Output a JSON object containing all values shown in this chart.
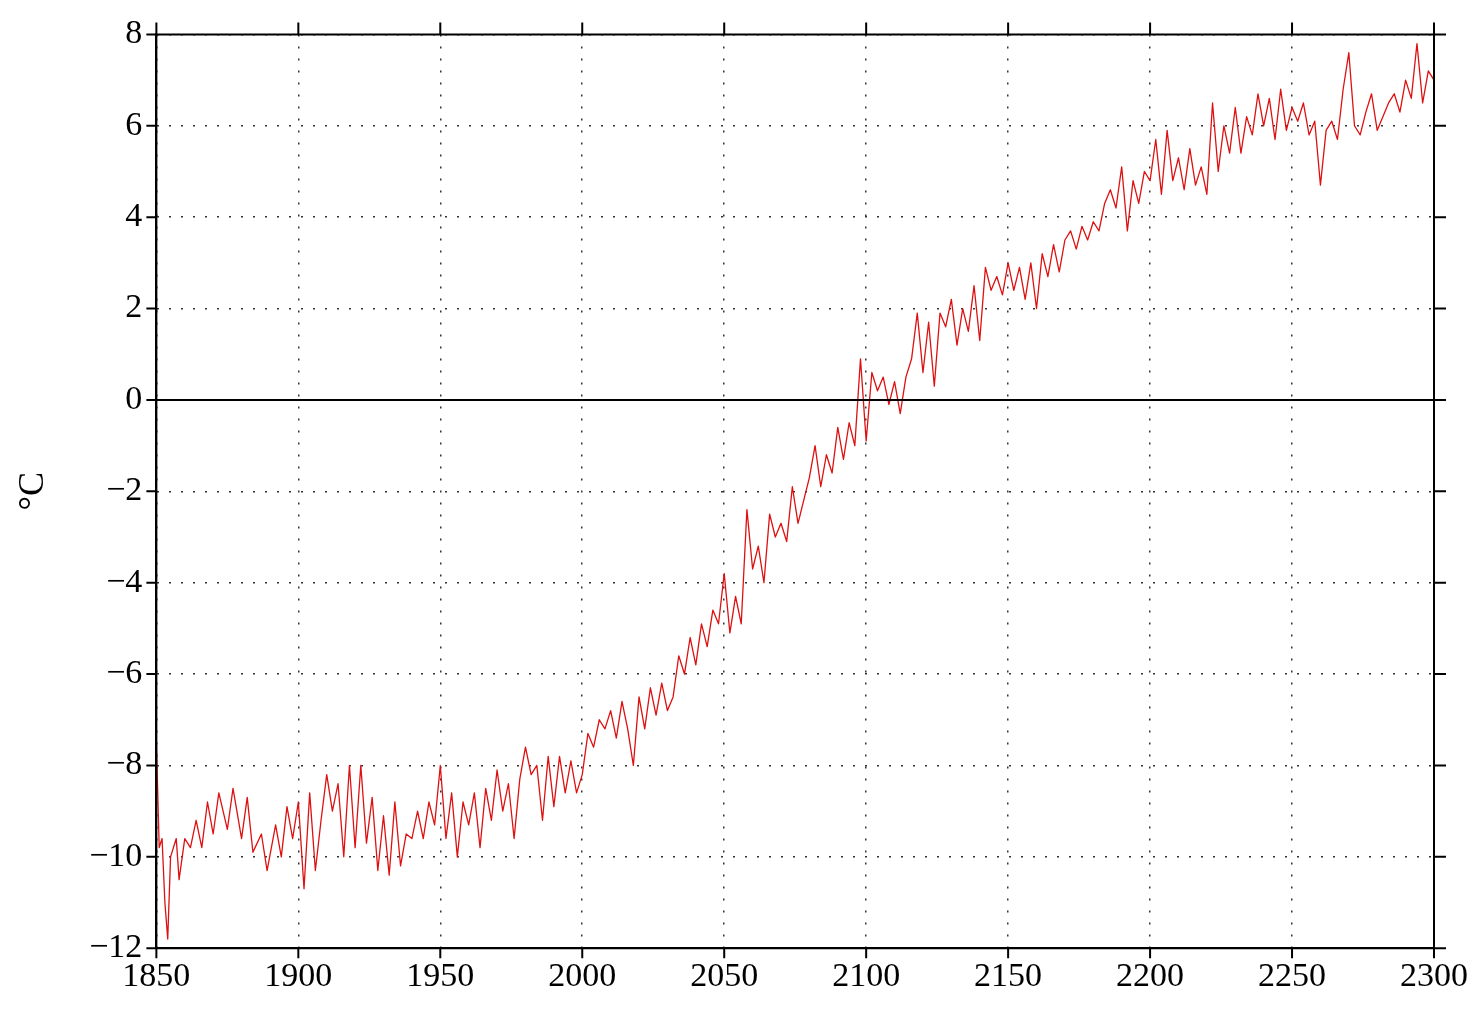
{
  "chart_data": {
    "type": "line",
    "ylabel": "°C",
    "xlim": [
      1850,
      2300
    ],
    "xticks": [
      1850,
      1900,
      1950,
      2000,
      2050,
      2100,
      2150,
      2200,
      2250,
      2300
    ],
    "ylim": [
      -12,
      8
    ],
    "yticks": [
      -12,
      -10,
      -8,
      -6,
      -4,
      -2,
      0,
      2,
      4,
      6,
      8
    ],
    "grid": true,
    "line_style": "solid",
    "marker": "none",
    "legend": false,
    "ref_lines": [
      {
        "axis": "y",
        "value": 0,
        "color": "#000000"
      }
    ],
    "series": [
      {
        "color": "#dd1111",
        "x": [
          1850,
          1851,
          1852,
          1853,
          1854,
          1855,
          1857,
          1858,
          1860,
          1862,
          1864,
          1866,
          1868,
          1870,
          1872,
          1875,
          1877,
          1880,
          1882,
          1884,
          1887,
          1889,
          1892,
          1894,
          1896,
          1898,
          1900,
          1902,
          1904,
          1906,
          1908,
          1910,
          1912,
          1914,
          1916,
          1918,
          1920,
          1922,
          1924,
          1926,
          1928,
          1930,
          1932,
          1934,
          1936,
          1938,
          1940,
          1942,
          1944,
          1946,
          1948,
          1950,
          1952,
          1954,
          1956,
          1958,
          1960,
          1962,
          1964,
          1966,
          1968,
          1970,
          1972,
          1974,
          1976,
          1978,
          1980,
          1982,
          1984,
          1986,
          1988,
          1990,
          1992,
          1994,
          1996,
          1998,
          2000,
          2002,
          2004,
          2006,
          2008,
          2010,
          2012,
          2014,
          2016,
          2018,
          2020,
          2022,
          2024,
          2026,
          2028,
          2030,
          2032,
          2034,
          2036,
          2038,
          2040,
          2042,
          2044,
          2046,
          2048,
          2050,
          2052,
          2054,
          2056,
          2058,
          2060,
          2062,
          2064,
          2066,
          2068,
          2070,
          2072,
          2074,
          2076,
          2078,
          2080,
          2082,
          2084,
          2086,
          2088,
          2090,
          2092,
          2094,
          2096,
          2098,
          2100,
          2102,
          2104,
          2106,
          2108,
          2110,
          2112,
          2114,
          2116,
          2118,
          2120,
          2122,
          2124,
          2126,
          2128,
          2130,
          2132,
          2134,
          2136,
          2138,
          2140,
          2142,
          2144,
          2146,
          2148,
          2150,
          2152,
          2154,
          2156,
          2158,
          2160,
          2162,
          2164,
          2166,
          2168,
          2170,
          2172,
          2174,
          2176,
          2178,
          2180,
          2182,
          2184,
          2186,
          2188,
          2190,
          2192,
          2194,
          2196,
          2198,
          2200,
          2202,
          2204,
          2206,
          2208,
          2210,
          2212,
          2214,
          2216,
          2218,
          2220,
          2222,
          2224,
          2226,
          2228,
          2230,
          2232,
          2234,
          2236,
          2238,
          2240,
          2242,
          2244,
          2246,
          2248,
          2250,
          2252,
          2254,
          2256,
          2258,
          2260,
          2262,
          2264,
          2266,
          2268,
          2270,
          2272,
          2274,
          2276,
          2278,
          2280,
          2282,
          2284,
          2286,
          2288,
          2290,
          2292,
          2294,
          2296,
          2298,
          2300
        ],
        "values": [
          -7.5,
          -9.8,
          -9.6,
          -11.0,
          -11.8,
          -10.0,
          -9.6,
          -10.5,
          -9.6,
          -9.8,
          -9.2,
          -9.8,
          -8.8,
          -9.5,
          -8.6,
          -9.4,
          -8.5,
          -9.6,
          -8.7,
          -9.9,
          -9.5,
          -10.3,
          -9.3,
          -10.0,
          -8.9,
          -9.6,
          -8.8,
          -10.7,
          -8.6,
          -10.3,
          -9.2,
          -8.2,
          -9.0,
          -8.4,
          -10.0,
          -8.0,
          -9.8,
          -8.0,
          -9.7,
          -8.7,
          -10.3,
          -9.1,
          -10.4,
          -8.8,
          -10.2,
          -9.5,
          -9.6,
          -9.0,
          -9.6,
          -8.8,
          -9.3,
          -8.0,
          -9.6,
          -8.6,
          -10.0,
          -8.8,
          -9.3,
          -8.6,
          -9.8,
          -8.5,
          -9.2,
          -8.1,
          -9.0,
          -8.4,
          -9.6,
          -8.3,
          -7.6,
          -8.2,
          -8.0,
          -9.2,
          -7.8,
          -8.9,
          -7.8,
          -8.6,
          -7.9,
          -8.6,
          -8.2,
          -7.3,
          -7.6,
          -7.0,
          -7.2,
          -6.8,
          -7.4,
          -6.6,
          -7.2,
          -8.0,
          -6.5,
          -7.2,
          -6.3,
          -6.9,
          -6.2,
          -6.8,
          -6.5,
          -5.6,
          -6.0,
          -5.2,
          -5.8,
          -4.9,
          -5.4,
          -4.6,
          -4.9,
          -3.8,
          -5.1,
          -4.3,
          -4.9,
          -2.4,
          -3.7,
          -3.2,
          -4.0,
          -2.5,
          -3.0,
          -2.7,
          -3.1,
          -1.9,
          -2.7,
          -2.2,
          -1.7,
          -1.0,
          -1.9,
          -1.2,
          -1.6,
          -0.6,
          -1.3,
          -0.5,
          -1.0,
          0.9,
          -0.9,
          0.6,
          0.2,
          0.5,
          -0.1,
          0.4,
          -0.3,
          0.5,
          0.9,
          1.9,
          0.6,
          1.7,
          0.3,
          1.9,
          1.6,
          2.2,
          1.2,
          2.0,
          1.5,
          2.5,
          1.3,
          2.9,
          2.4,
          2.7,
          2.3,
          3.0,
          2.4,
          2.9,
          2.2,
          3.0,
          2.0,
          3.2,
          2.7,
          3.4,
          2.8,
          3.5,
          3.7,
          3.3,
          3.8,
          3.5,
          3.9,
          3.7,
          4.3,
          4.6,
          4.2,
          5.1,
          3.7,
          4.8,
          4.3,
          5.0,
          4.8,
          5.7,
          4.5,
          5.9,
          4.8,
          5.3,
          4.6,
          5.5,
          4.7,
          5.1,
          4.5,
          6.5,
          5.0,
          6.0,
          5.4,
          6.4,
          5.4,
          6.2,
          5.8,
          6.7,
          6.0,
          6.6,
          5.7,
          6.8,
          5.9,
          6.4,
          6.1,
          6.5,
          5.8,
          6.1,
          4.7,
          5.9,
          6.1,
          5.7,
          6.8,
          7.6,
          6.0,
          5.8,
          6.3,
          6.7,
          5.9,
          6.2,
          6.5,
          6.7,
          6.3,
          7.0,
          6.6,
          7.8,
          6.5,
          7.2,
          7.0
        ]
      }
    ]
  }
}
